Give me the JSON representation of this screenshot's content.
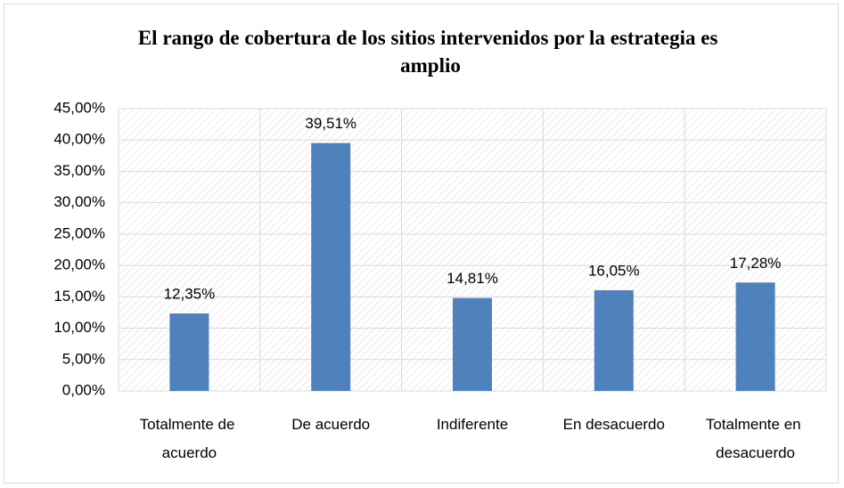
{
  "chart_data": {
    "type": "bar",
    "title": "El rango de cobertura de los sitios intervenidos por la estrategia es amplio",
    "categories": [
      "Totalmente de acuerdo",
      "De acuerdo",
      "Indiferente",
      "En desacuerdo",
      "Totalmente en desacuerdo"
    ],
    "values": [
      12.35,
      39.51,
      14.81,
      16.05,
      17.28
    ],
    "value_labels": [
      "12,35%",
      "39,51%",
      "14,81%",
      "16,05%",
      "17,28%"
    ],
    "color": "#4f81bd",
    "ylim": [
      0,
      45
    ],
    "yticks": [
      {
        "value": 0,
        "label": "0,00%"
      },
      {
        "value": 5,
        "label": "5,00%"
      },
      {
        "value": 10,
        "label": "10,00%"
      },
      {
        "value": 15,
        "label": "15,00%"
      },
      {
        "value": 20,
        "label": "20,00%"
      },
      {
        "value": 25,
        "label": "25,00%"
      },
      {
        "value": 30,
        "label": "30,00%"
      },
      {
        "value": 35,
        "label": "35,00%"
      },
      {
        "value": 40,
        "label": "40,00%"
      },
      {
        "value": 45,
        "label": "45,00%"
      }
    ],
    "grid": true
  }
}
